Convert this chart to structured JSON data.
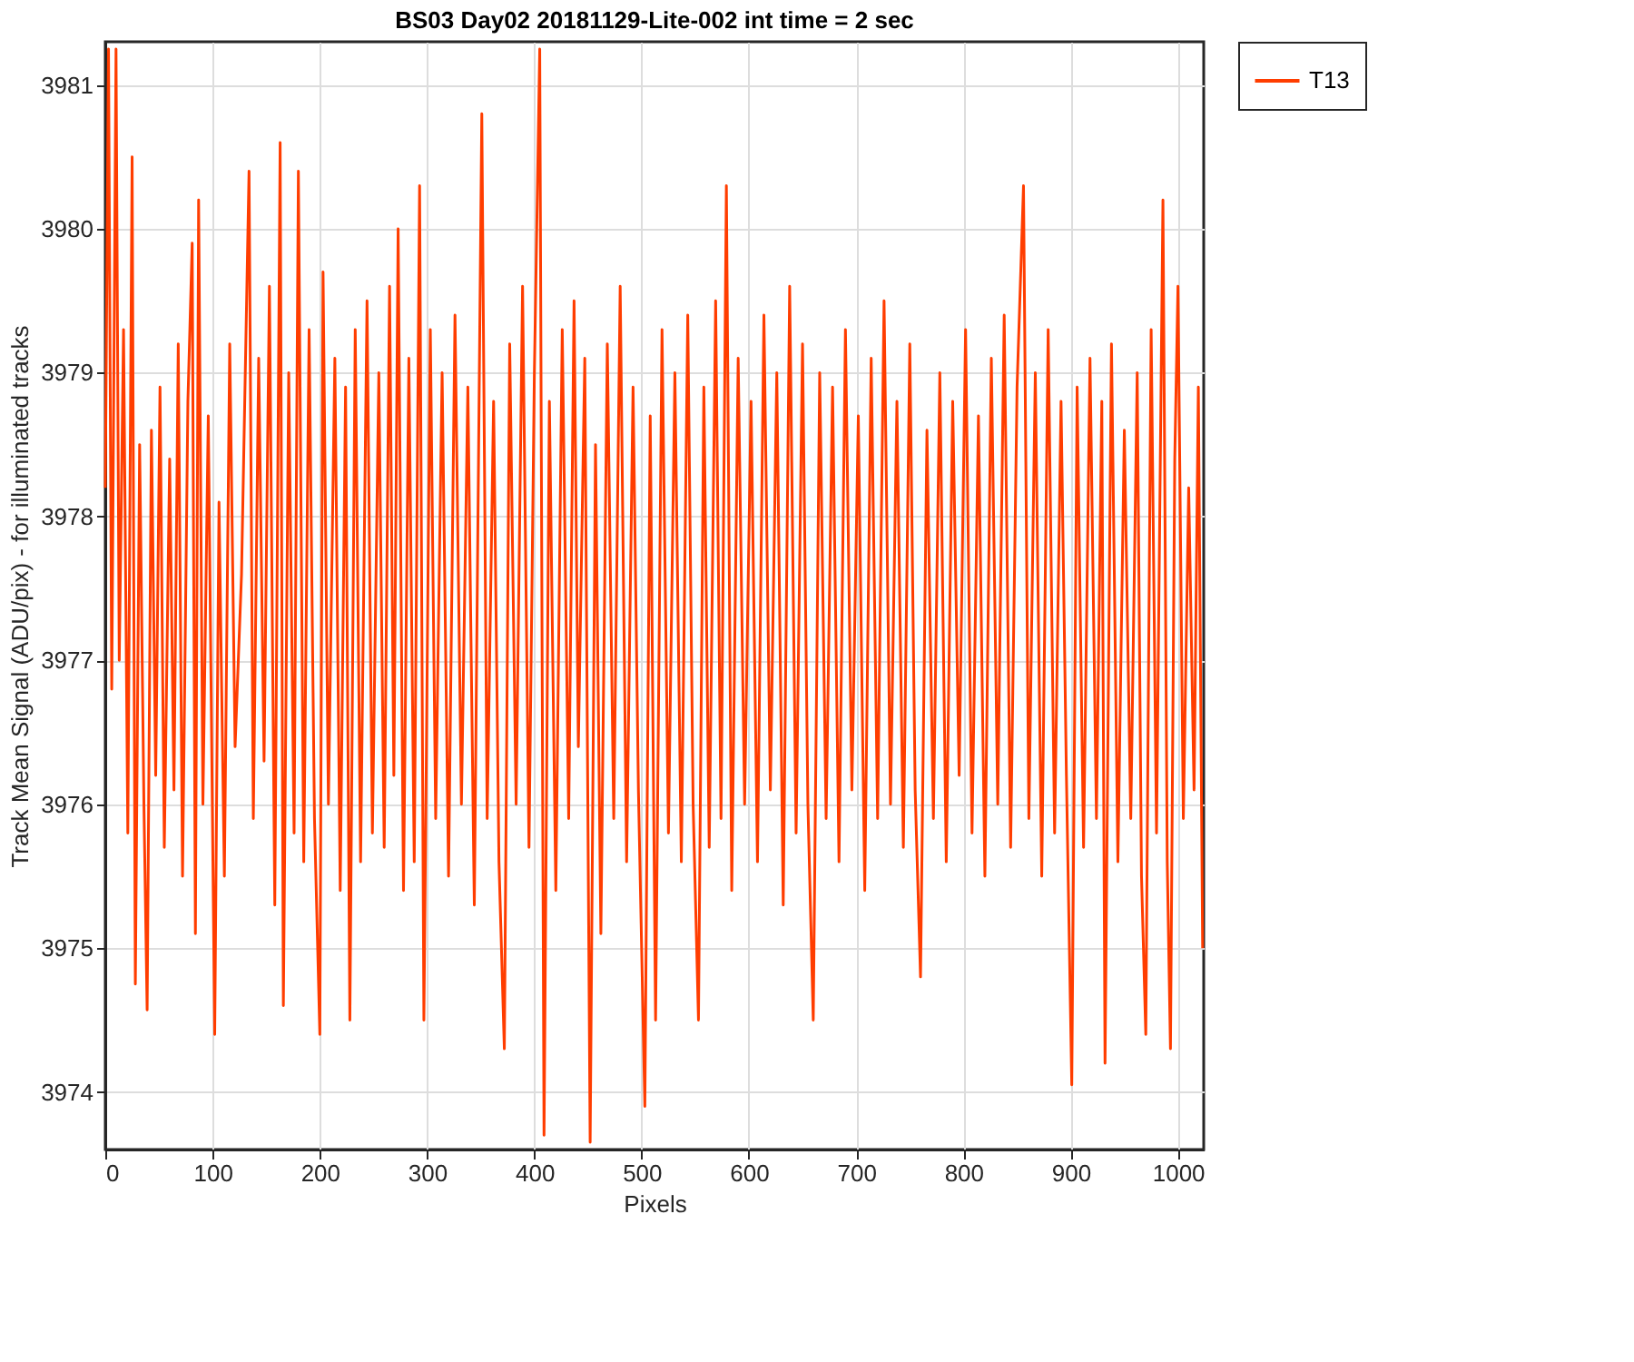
{
  "chart_data": {
    "type": "line",
    "title": "BS03 Day02 20181129-Lite-002 int time = 2 sec",
    "xlabel": "Pixels",
    "ylabel": "Track Mean Signal (ADU/pix) - for illuminated tracks",
    "xlim": [
      0,
      1024
    ],
    "ylim": [
      3973.6,
      3981.3
    ],
    "xticks": [
      0,
      100,
      200,
      300,
      400,
      500,
      600,
      700,
      800,
      900,
      1000
    ],
    "yticks": [
      3974,
      3975,
      3976,
      3977,
      3978,
      3979,
      3980,
      3981
    ],
    "grid": true,
    "legend": "top right",
    "line_style": "solid",
    "x": [
      0,
      3,
      6,
      10,
      13,
      17,
      21,
      25,
      28,
      32,
      36,
      39,
      43,
      47,
      51,
      55,
      60,
      64,
      68,
      72,
      77,
      81,
      84,
      87,
      91,
      96,
      102,
      106,
      111,
      116,
      121,
      127,
      134,
      138,
      143,
      148,
      153,
      158,
      163,
      166,
      171,
      176,
      180,
      185,
      190,
      195,
      200,
      203,
      208,
      214,
      219,
      224,
      228,
      233,
      238,
      244,
      249,
      255,
      260,
      265,
      269,
      273,
      278,
      283,
      288,
      293,
      297,
      303,
      308,
      314,
      320,
      326,
      332,
      338,
      344,
      351,
      356,
      362,
      367,
      372,
      377,
      383,
      389,
      395,
      400,
      405,
      409,
      414,
      420,
      426,
      432,
      437,
      441,
      447,
      452,
      457,
      462,
      468,
      474,
      480,
      486,
      492,
      497,
      503,
      508,
      513,
      519,
      525,
      531,
      537,
      543,
      548,
      553,
      558,
      563,
      569,
      574,
      579,
      584,
      590,
      596,
      602,
      608,
      614,
      620,
      626,
      632,
      638,
      644,
      650,
      655,
      660,
      666,
      672,
      678,
      684,
      690,
      696,
      702,
      708,
      714,
      720,
      726,
      732,
      738,
      744,
      750,
      755,
      760,
      766,
      772,
      778,
      784,
      790,
      796,
      802,
      808,
      814,
      820,
      826,
      832,
      838,
      844,
      850,
      856,
      861,
      867,
      873,
      879,
      885,
      891,
      896,
      901,
      906,
      912,
      918,
      924,
      929,
      932,
      938,
      944,
      950,
      956,
      962,
      966,
      970,
      975,
      980,
      986,
      990,
      993,
      997,
      1000,
      1005,
      1010,
      1015,
      1019,
      1023
    ],
    "series": [
      {
        "name": "T13",
        "color": "#ff3d00",
        "values": [
          3978.2,
          3981.25,
          3976.8,
          3981.25,
          3977.0,
          3979.3,
          3975.8,
          3980.5,
          3974.75,
          3978.5,
          3976.0,
          3974.57,
          3978.6,
          3976.2,
          3978.9,
          3975.7,
          3978.4,
          3976.1,
          3979.2,
          3975.5,
          3978.8,
          3979.9,
          3975.1,
          3980.2,
          3976.0,
          3978.7,
          3974.4,
          3978.1,
          3975.5,
          3979.2,
          3976.4,
          3977.6,
          3980.4,
          3975.9,
          3979.1,
          3976.3,
          3979.6,
          3975.3,
          3980.6,
          3974.6,
          3979.0,
          3975.8,
          3980.4,
          3975.6,
          3979.3,
          3975.9,
          3974.4,
          3979.7,
          3976.0,
          3979.1,
          3975.4,
          3978.9,
          3974.5,
          3979.3,
          3975.6,
          3979.5,
          3975.8,
          3979.0,
          3975.7,
          3979.6,
          3976.2,
          3980.0,
          3975.4,
          3979.1,
          3975.6,
          3980.3,
          3974.5,
          3979.3,
          3975.9,
          3979.0,
          3975.5,
          3979.4,
          3976.0,
          3978.9,
          3975.3,
          3980.8,
          3975.9,
          3978.8,
          3975.6,
          3974.3,
          3979.2,
          3976.0,
          3979.6,
          3975.7,
          3979.0,
          3981.25,
          3973.7,
          3978.8,
          3975.4,
          3979.3,
          3975.9,
          3979.5,
          3976.4,
          3979.1,
          3973.65,
          3978.5,
          3975.1,
          3979.2,
          3975.9,
          3979.6,
          3975.6,
          3978.9,
          3976.1,
          3973.9,
          3978.7,
          3974.5,
          3979.3,
          3975.8,
          3979.0,
          3975.6,
          3979.4,
          3976.0,
          3974.5,
          3978.9,
          3975.7,
          3979.5,
          3975.9,
          3980.3,
          3975.4,
          3979.1,
          3976.0,
          3978.8,
          3975.6,
          3979.4,
          3976.1,
          3979.0,
          3975.3,
          3979.6,
          3975.8,
          3979.2,
          3976.0,
          3974.5,
          3979.0,
          3975.9,
          3978.9,
          3975.6,
          3979.3,
          3976.1,
          3978.7,
          3975.4,
          3979.1,
          3975.9,
          3979.5,
          3976.0,
          3978.8,
          3975.7,
          3979.2,
          3976.1,
          3974.8,
          3978.6,
          3975.9,
          3979.0,
          3975.6,
          3978.8,
          3976.2,
          3979.3,
          3975.8,
          3978.7,
          3975.5,
          3979.1,
          3976.0,
          3979.4,
          3975.7,
          3978.9,
          3980.3,
          3975.9,
          3979.0,
          3975.5,
          3979.3,
          3975.8,
          3978.8,
          3976.2,
          3974.05,
          3978.9,
          3975.7,
          3979.1,
          3975.9,
          3978.8,
          3974.2,
          3979.2,
          3975.6,
          3978.6,
          3975.9,
          3979.0,
          3975.5,
          3974.4,
          3979.3,
          3975.8,
          3980.2,
          3975.6,
          3974.3,
          3978.4,
          3979.6,
          3975.9,
          3978.2,
          3976.1,
          3978.9,
          3975.0
        ]
      }
    ]
  }
}
